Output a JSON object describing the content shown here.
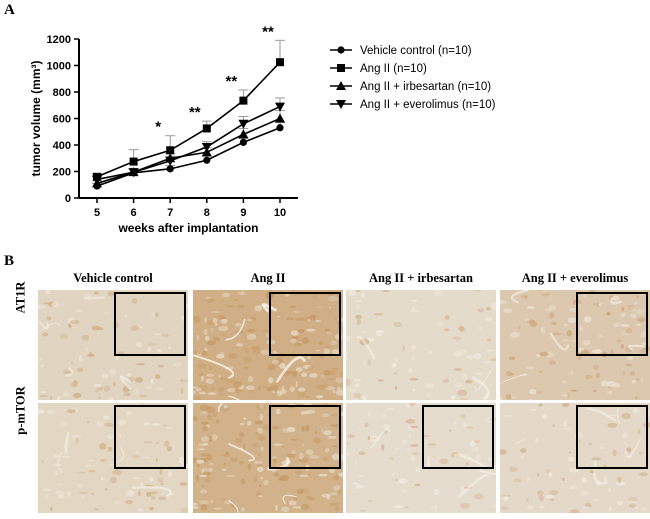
{
  "panel_a_label": "A",
  "panel_b_label": "B",
  "chart_data": {
    "type": "line",
    "title": "",
    "xlabel": "weeks after implantation",
    "ylabel": "tumor volume (mm³)",
    "x": [
      5,
      6,
      7,
      8,
      9,
      10
    ],
    "xlim": [
      5,
      10
    ],
    "ylim": [
      0,
      1200
    ],
    "yticks": [
      0,
      200,
      400,
      600,
      800,
      1000,
      1200
    ],
    "grid": false,
    "legend": "right",
    "series": [
      {
        "name": "Vehicle control (n=10)",
        "marker": "circle",
        "values": [
          90,
          190,
          220,
          285,
          420,
          530
        ],
        "err": [
          20,
          25,
          25,
          30,
          30,
          40
        ]
      },
      {
        "name": "Ang II (n=10)",
        "marker": "square",
        "values": [
          160,
          275,
          360,
          525,
          735,
          1025
        ],
        "err": [
          25,
          90,
          110,
          55,
          80,
          165
        ]
      },
      {
        "name": "Ang II + irbesartan (n=10)",
        "marker": "triangle-up",
        "values": [
          110,
          195,
          300,
          345,
          480,
          600
        ],
        "err": [
          20,
          25,
          35,
          35,
          45,
          60
        ]
      },
      {
        "name": "Ang II + everolimus (n=10)",
        "marker": "triangle-down",
        "values": [
          140,
          195,
          280,
          385,
          560,
          690
        ],
        "err": [
          20,
          25,
          35,
          40,
          55,
          65
        ]
      }
    ],
    "annotations": [
      {
        "x": 7,
        "y": 360,
        "text": "*"
      },
      {
        "x": 8,
        "y": 525,
        "text": "**"
      },
      {
        "x": 9,
        "y": 735,
        "text": "**"
      },
      {
        "x": 10,
        "y": 1025,
        "text": "**"
      }
    ]
  },
  "panel_b": {
    "columns": [
      "Vehicle control",
      "Ang II",
      "Ang II + irbesartan",
      "Ang II + everolimus"
    ],
    "rows": [
      "AT1R",
      "p-mTOR"
    ],
    "stain_intensity": [
      [
        0.25,
        0.9,
        0.12,
        0.45
      ],
      [
        0.2,
        0.85,
        0.1,
        0.15
      ]
    ]
  }
}
